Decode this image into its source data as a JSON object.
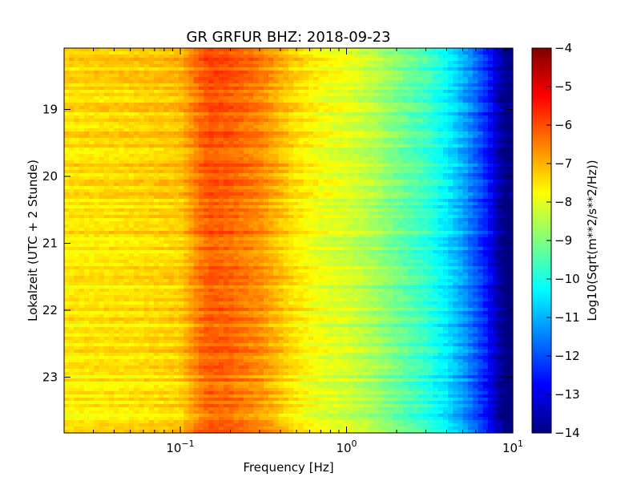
{
  "chart_data": {
    "type": "heatmap",
    "title": "GR GRFUR BHZ: 2018-09-23",
    "xlabel": "Frequency [Hz]",
    "ylabel": "Lokalzeit (UTC + 2 Stunde)",
    "x_scale": "log",
    "xlim": [
      0.02,
      10
    ],
    "ylim": [
      18.0833,
      23.8333
    ],
    "y_inverted": true,
    "x_major_ticks": [
      {
        "value": 0.1,
        "base": "10",
        "exp": "−1"
      },
      {
        "value": 1,
        "base": "10",
        "exp": "0"
      },
      {
        "value": 10,
        "base": "10",
        "exp": "1"
      }
    ],
    "y_ticks": [
      {
        "value": 19,
        "label": "19"
      },
      {
        "value": 20,
        "label": "20"
      },
      {
        "value": 21,
        "label": "21"
      },
      {
        "value": 22,
        "label": "22"
      },
      {
        "value": 23,
        "label": "23"
      }
    ],
    "frequency_profile": {
      "freqs": [
        0.02,
        0.05,
        0.08,
        0.1,
        0.13,
        0.15,
        0.2,
        0.3,
        0.4,
        0.5,
        0.7,
        1.0,
        1.5,
        2.0,
        3.0,
        4.0,
        5.0,
        6.0,
        7.0,
        8.0,
        9.0,
        10.0
      ],
      "values": [
        -7.4,
        -7.3,
        -7.2,
        -7.1,
        -6.3,
        -6.0,
        -6.1,
        -6.5,
        -7.0,
        -7.4,
        -7.8,
        -8.0,
        -8.5,
        -9.0,
        -9.6,
        -10.3,
        -11.0,
        -11.7,
        -12.4,
        -13.3,
        -13.9,
        -14.0
      ]
    },
    "colorbar": {
      "label": "Log10(Sqrt(m**2/s**2/Hz))",
      "colormap": "jet",
      "vmin": -14,
      "vmax": -4,
      "ticks": [
        {
          "value": -4,
          "label": "−4"
        },
        {
          "value": -5,
          "label": "−5"
        },
        {
          "value": -6,
          "label": "−6"
        },
        {
          "value": -7,
          "label": "−7"
        },
        {
          "value": -8,
          "label": "−8"
        },
        {
          "value": -9,
          "label": "−9"
        },
        {
          "value": -10,
          "label": "−10"
        },
        {
          "value": -11,
          "label": "−11"
        },
        {
          "value": -12,
          "label": "−12"
        },
        {
          "value": -13,
          "label": "−13"
        },
        {
          "value": -14,
          "label": "−14"
        }
      ]
    }
  }
}
